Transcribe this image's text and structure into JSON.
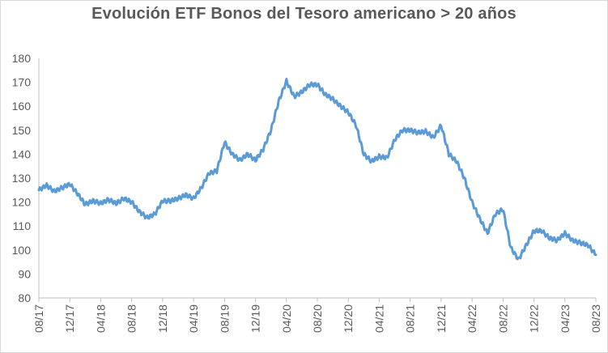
{
  "chart_data": {
    "type": "line",
    "title": "Evolución ETF Bonos del Tesoro americano > 20 años",
    "xlabel": "",
    "ylabel": "",
    "ylim": [
      80,
      180
    ],
    "y_ticks": [
      "80",
      "90",
      "100",
      "110",
      "120",
      "130",
      "140",
      "150",
      "160",
      "170",
      "180"
    ],
    "x_tick_labels": [
      "08/17",
      "12/17",
      "04/18",
      "08/18",
      "12/18",
      "04/19",
      "08/19",
      "12/19",
      "04/20",
      "08/20",
      "12/20",
      "04/21",
      "08/21",
      "12/21",
      "04/22",
      "08/22",
      "12/22",
      "04/23",
      "08/23"
    ],
    "grid": false,
    "legend": "none",
    "line_color": "#5b9bd5",
    "series": [
      {
        "x": [
          "08/17",
          "09/17",
          "10/17",
          "11/17",
          "12/17",
          "01/18",
          "02/18",
          "03/18",
          "04/18",
          "05/18",
          "06/18",
          "07/18",
          "08/18",
          "09/18",
          "10/18",
          "11/18",
          "12/18",
          "01/19",
          "02/19",
          "03/19",
          "04/19",
          "05/19",
          "06/19",
          "07/19",
          "08/19",
          "09/19",
          "10/19",
          "11/19",
          "12/19",
          "01/20",
          "02/20",
          "03/20",
          "04/20",
          "05/20",
          "06/20",
          "07/20",
          "08/20",
          "09/20",
          "10/20",
          "11/20",
          "12/20",
          "01/21",
          "02/21",
          "03/21",
          "04/21",
          "05/21",
          "06/21",
          "07/21",
          "08/21",
          "09/21",
          "10/21",
          "11/21",
          "12/21",
          "01/22",
          "02/22",
          "03/22",
          "04/22",
          "05/22",
          "06/22",
          "07/22",
          "08/22",
          "09/22",
          "10/22",
          "11/22",
          "12/22",
          "01/23",
          "02/23",
          "03/23",
          "04/23",
          "05/23",
          "06/23",
          "07/23",
          "08/23"
        ],
        "values": [
          125,
          127,
          124.5,
          126,
          127.5,
          123.5,
          119,
          120.5,
          119.5,
          121,
          119.5,
          121.5,
          120,
          116,
          113.5,
          115,
          120.5,
          120.5,
          121.5,
          123,
          121.5,
          126,
          132,
          133,
          145,
          140,
          137.5,
          140,
          137.5,
          142,
          150,
          162,
          170.5,
          164,
          166,
          169,
          169,
          165,
          163,
          160,
          157.5,
          152,
          140,
          137,
          139,
          138.5,
          146,
          150,
          150,
          149,
          149.5,
          147,
          152,
          140,
          137,
          130,
          120,
          113,
          107,
          115,
          117,
          101,
          96,
          102,
          108,
          108,
          105,
          104,
          107,
          104,
          103,
          102,
          98
        ]
      }
    ]
  }
}
